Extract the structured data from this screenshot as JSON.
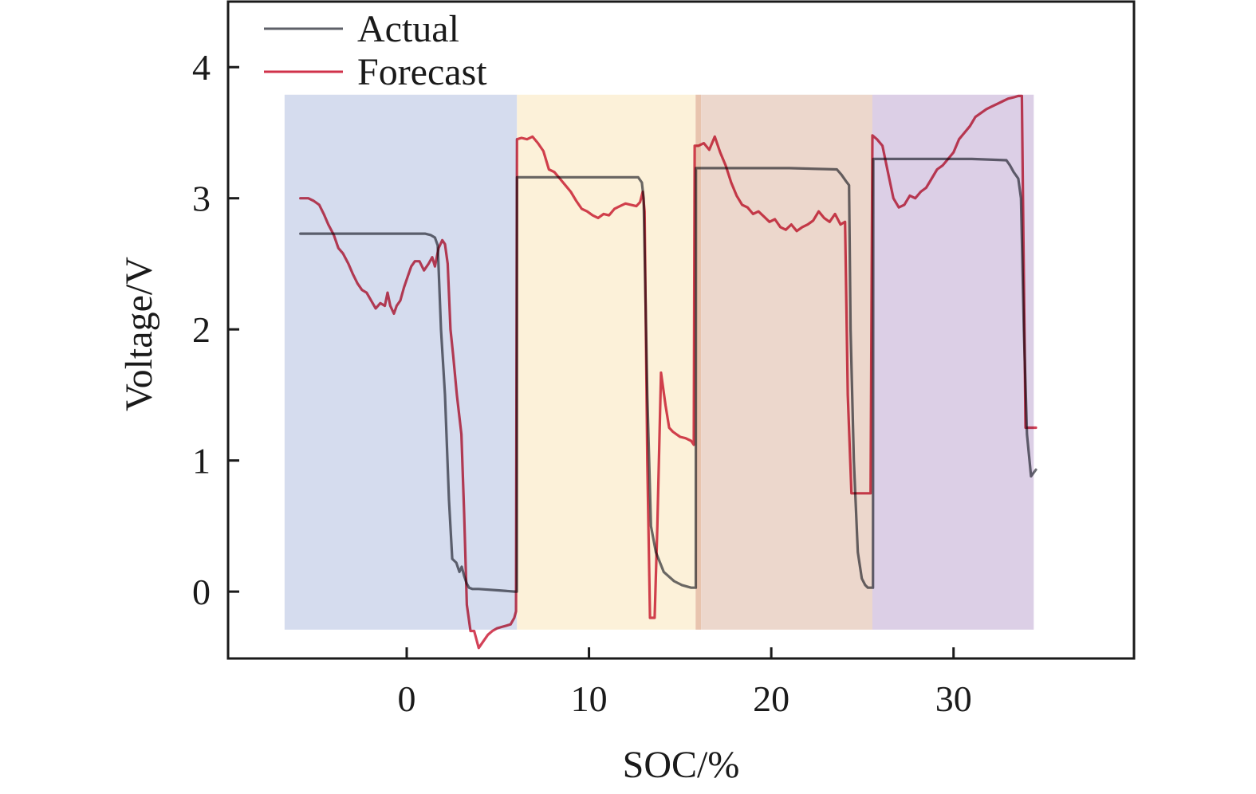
{
  "chart_data": {
    "type": "line",
    "title": "",
    "xlabel": "SOC/%",
    "ylabel": "Voltage/V",
    "xlim": [
      -9.8,
      39.9
    ],
    "ylim": [
      -0.51,
      4.5
    ],
    "x_ticks": [
      0,
      10,
      20,
      30
    ],
    "x_tick_labels": [
      "0",
      "10",
      "20",
      "30"
    ],
    "y_ticks": [
      0,
      1,
      2,
      3,
      4
    ],
    "y_tick_labels": [
      "0",
      "1",
      "2",
      "3",
      "4"
    ],
    "grid": false,
    "legend": {
      "position": "top-left",
      "entries": [
        "Actual",
        "Forecast"
      ]
    },
    "colors": {
      "Actual": "#5e6068",
      "Forecast": "#d0324a",
      "axis": "#1a1a1a"
    },
    "regions": [
      {
        "name": "segment-1",
        "x_start": -6.7,
        "x_end": 6.05,
        "y_start": -0.29,
        "y_end": 3.79,
        "color": "#d5dcee"
      },
      {
        "name": "segment-2",
        "x_start": 6.05,
        "x_end": 15.85,
        "y_start": -0.29,
        "y_end": 3.79,
        "color": "#fcf1d9"
      },
      {
        "name": "segment-overlap",
        "x_start": 15.85,
        "x_end": 16.15,
        "y_start": -0.29,
        "y_end": 3.79,
        "color": "#e8c4ae"
      },
      {
        "name": "segment-3",
        "x_start": 16.15,
        "x_end": 25.55,
        "y_start": -0.29,
        "y_end": 3.79,
        "color": "#ecd7cc"
      },
      {
        "name": "segment-4",
        "x_start": 25.55,
        "x_end": 34.4,
        "y_start": -0.29,
        "y_end": 3.79,
        "color": "#dccfe6"
      }
    ],
    "series": [
      {
        "name": "Actual",
        "x": [
          -5.83,
          -3.0,
          0.0,
          1.0,
          1.31,
          1.55,
          1.7,
          1.88,
          2.1,
          2.32,
          2.5,
          2.72,
          2.89,
          3.02,
          3.15,
          3.3,
          3.42,
          3.6,
          3.94,
          5.0,
          5.91,
          6.04,
          6.05,
          9.0,
          12.0,
          12.7,
          12.9,
          13.0,
          13.2,
          13.4,
          13.67,
          14.1,
          14.67,
          15.1,
          15.6,
          15.72,
          15.86,
          15.87,
          18.0,
          21.0,
          23.6,
          23.85,
          24.1,
          24.27,
          24.35,
          24.53,
          24.75,
          24.97,
          25.15,
          25.3,
          25.58,
          25.6,
          28.0,
          31.0,
          32.9,
          33.1,
          33.3,
          33.55,
          33.7,
          33.86,
          34.03,
          34.25,
          34.52
        ],
        "y": [
          2.73,
          2.73,
          2.73,
          2.73,
          2.72,
          2.7,
          2.64,
          2.0,
          1.5,
          0.7,
          0.25,
          0.22,
          0.15,
          0.19,
          0.12,
          0.06,
          0.03,
          0.02,
          0.02,
          0.01,
          0.0,
          0.0,
          3.16,
          3.16,
          3.16,
          3.16,
          3.12,
          3.0,
          1.5,
          0.5,
          0.3,
          0.15,
          0.08,
          0.05,
          0.03,
          0.03,
          0.03,
          3.23,
          3.23,
          3.23,
          3.22,
          3.18,
          3.13,
          3.1,
          2.0,
          1.0,
          0.3,
          0.1,
          0.05,
          0.03,
          0.03,
          3.3,
          3.3,
          3.3,
          3.29,
          3.25,
          3.2,
          3.15,
          3.0,
          2.0,
          1.2,
          0.88,
          0.93
        ]
      },
      {
        "name": "Forecast",
        "x": [
          -5.83,
          -5.4,
          -5.1,
          -4.8,
          -4.55,
          -4.3,
          -4.0,
          -3.75,
          -3.5,
          -3.2,
          -2.95,
          -2.7,
          -2.45,
          -2.2,
          -1.95,
          -1.7,
          -1.45,
          -1.2,
          -1.05,
          -0.9,
          -0.7,
          -0.55,
          -0.35,
          -0.15,
          0.05,
          0.25,
          0.45,
          0.7,
          0.95,
          1.2,
          1.4,
          1.55,
          1.75,
          1.95,
          2.1,
          2.25,
          2.4,
          2.55,
          2.75,
          3.0,
          3.15,
          3.3,
          3.5,
          3.7,
          3.95,
          4.2,
          4.45,
          4.7,
          4.95,
          5.2,
          5.45,
          5.7,
          5.9,
          6.0,
          6.05,
          6.3,
          6.6,
          6.9,
          7.2,
          7.5,
          7.8,
          8.1,
          8.4,
          8.7,
          9.0,
          9.3,
          9.6,
          9.9,
          10.2,
          10.5,
          10.8,
          11.1,
          11.4,
          11.7,
          12.0,
          12.3,
          12.6,
          12.8,
          12.95,
          13.05,
          13.2,
          13.35,
          13.6,
          13.75,
          13.95,
          14.2,
          14.4,
          14.6,
          14.8,
          15.0,
          15.3,
          15.6,
          15.75,
          15.8,
          16.0,
          16.3,
          16.6,
          16.9,
          17.2,
          17.5,
          17.8,
          18.1,
          18.4,
          18.7,
          19.0,
          19.3,
          19.6,
          19.9,
          20.2,
          20.5,
          20.8,
          21.1,
          21.4,
          21.7,
          22.0,
          22.3,
          22.6,
          22.9,
          23.2,
          23.5,
          23.8,
          24.05,
          24.2,
          24.4,
          24.5,
          25.3,
          25.45,
          25.55,
          25.8,
          26.1,
          26.4,
          26.7,
          27.0,
          27.3,
          27.6,
          27.9,
          28.2,
          28.5,
          28.8,
          29.1,
          29.4,
          29.7,
          30.0,
          30.3,
          30.6,
          30.9,
          31.2,
          31.5,
          31.8,
          32.1,
          32.4,
          32.7,
          33.0,
          33.3,
          33.55,
          33.75,
          33.85,
          33.95,
          34.52
        ],
        "y": [
          3.0,
          3.0,
          2.98,
          2.95,
          2.88,
          2.8,
          2.72,
          2.62,
          2.58,
          2.5,
          2.42,
          2.35,
          2.3,
          2.28,
          2.22,
          2.16,
          2.2,
          2.18,
          2.28,
          2.18,
          2.12,
          2.18,
          2.22,
          2.32,
          2.4,
          2.48,
          2.52,
          2.52,
          2.45,
          2.5,
          2.55,
          2.48,
          2.62,
          2.68,
          2.65,
          2.5,
          2.0,
          1.8,
          1.5,
          1.2,
          0.6,
          -0.1,
          -0.3,
          -0.3,
          -0.43,
          -0.38,
          -0.33,
          -0.3,
          -0.28,
          -0.27,
          -0.26,
          -0.25,
          -0.2,
          -0.15,
          3.45,
          3.46,
          3.45,
          3.47,
          3.42,
          3.36,
          3.22,
          3.2,
          3.15,
          3.1,
          3.05,
          2.98,
          2.92,
          2.9,
          2.87,
          2.85,
          2.88,
          2.87,
          2.92,
          2.94,
          2.96,
          2.95,
          2.94,
          2.97,
          3.05,
          2.9,
          1.0,
          -0.2,
          -0.2,
          0.5,
          1.67,
          1.42,
          1.25,
          1.22,
          1.2,
          1.18,
          1.17,
          1.15,
          1.12,
          3.4,
          3.4,
          3.42,
          3.37,
          3.47,
          3.35,
          3.25,
          3.12,
          3.02,
          2.95,
          2.93,
          2.88,
          2.9,
          2.86,
          2.82,
          2.84,
          2.78,
          2.76,
          2.8,
          2.75,
          2.78,
          2.8,
          2.83,
          2.9,
          2.85,
          2.82,
          2.88,
          2.8,
          2.82,
          1.5,
          0.75,
          0.75,
          0.75,
          0.75,
          3.48,
          3.45,
          3.4,
          3.2,
          3.0,
          2.93,
          2.95,
          3.02,
          3.0,
          3.05,
          3.08,
          3.15,
          3.22,
          3.25,
          3.3,
          3.35,
          3.45,
          3.5,
          3.55,
          3.62,
          3.65,
          3.68,
          3.7,
          3.72,
          3.74,
          3.76,
          3.77,
          3.78,
          3.78,
          2.5,
          1.25,
          1.25
        ]
      }
    ]
  }
}
